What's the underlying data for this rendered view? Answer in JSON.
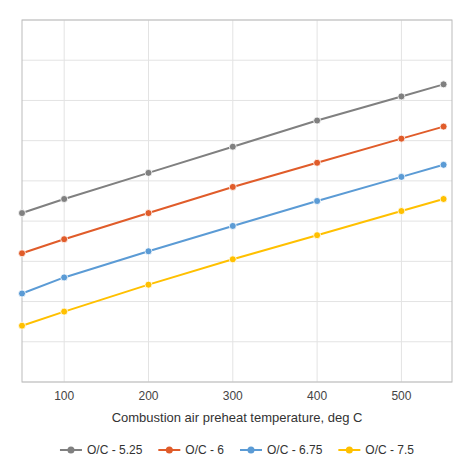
{
  "chart_data": {
    "type": "line",
    "xlabel": "Combustion air preheat temperature, deg C",
    "x": [
      50,
      100,
      200,
      300,
      400,
      500,
      550
    ],
    "series": [
      {
        "name": "O/C - 5.25",
        "color": "#808080",
        "values": [
          4.2,
          4.55,
          5.2,
          5.85,
          6.5,
          7.1,
          7.4
        ]
      },
      {
        "name": "O/C - 6",
        "color": "#E05C2A",
        "values": [
          3.2,
          3.55,
          4.2,
          4.85,
          5.45,
          6.05,
          6.35
        ]
      },
      {
        "name": "O/C - 6.75",
        "color": "#5B9BD5",
        "values": [
          2.2,
          2.6,
          3.25,
          3.88,
          4.5,
          5.1,
          5.4
        ]
      },
      {
        "name": "O/C - 7.5",
        "color": "#FFC000",
        "values": [
          1.4,
          1.75,
          2.42,
          3.05,
          3.65,
          4.25,
          4.55
        ]
      }
    ],
    "xlim": [
      50,
      560
    ],
    "ylim": [
      0,
      9
    ],
    "xticks": [
      100,
      200,
      300,
      400,
      500
    ],
    "yticks": [
      0,
      1,
      2,
      3,
      4,
      5,
      6,
      7,
      8,
      9
    ],
    "tick_labels": "x",
    "grid": true,
    "legend": "bottom",
    "marker": "circle"
  }
}
